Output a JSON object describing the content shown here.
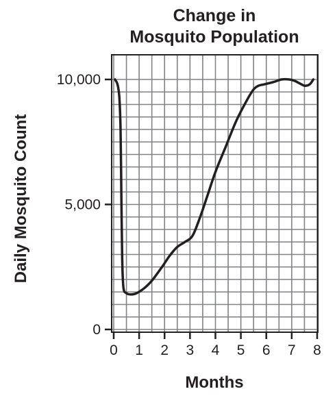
{
  "chart_data": {
    "type": "line",
    "title_lines": [
      "Change in",
      "Mosquito Population"
    ],
    "xlabel": "Months",
    "ylabel": "Daily Mosquito Count",
    "xlim": [
      0,
      8
    ],
    "ylim": [
      0,
      10000
    ],
    "x_ticks": [
      0,
      1,
      2,
      3,
      4,
      5,
      6,
      7,
      8
    ],
    "x_tick_labels": [
      "0",
      "1",
      "2",
      "3",
      "4",
      "5",
      "6",
      "7",
      "8"
    ],
    "y_ticks": [
      0,
      5000,
      10000
    ],
    "y_tick_labels": [
      "0",
      "5,000",
      "10,000"
    ],
    "grid": true,
    "x_grid_step": 0.5,
    "y_grid_step": 500,
    "line_color": "#231f20",
    "grid_color": "#808285",
    "series": [
      {
        "x": [
          0.05,
          0.15,
          0.22,
          0.27,
          0.3,
          0.33,
          0.38,
          0.5,
          0.7,
          0.9,
          1.2,
          1.5,
          1.9,
          2.2,
          2.5,
          2.8,
          3.1,
          3.4,
          3.7,
          4.0,
          4.4,
          4.8,
          5.2,
          5.5,
          5.7,
          5.9,
          6.1,
          6.3,
          6.6,
          6.9,
          7.1,
          7.3,
          7.5,
          7.7,
          7.85
        ],
        "y": [
          10000,
          9800,
          9300,
          8000,
          5500,
          3000,
          1700,
          1450,
          1400,
          1450,
          1650,
          1950,
          2500,
          2950,
          3300,
          3500,
          3750,
          4500,
          5400,
          6300,
          7300,
          8300,
          9100,
          9600,
          9750,
          9800,
          9850,
          9900,
          10000,
          10000,
          9950,
          9850,
          9750,
          9800,
          10000
        ]
      }
    ]
  }
}
